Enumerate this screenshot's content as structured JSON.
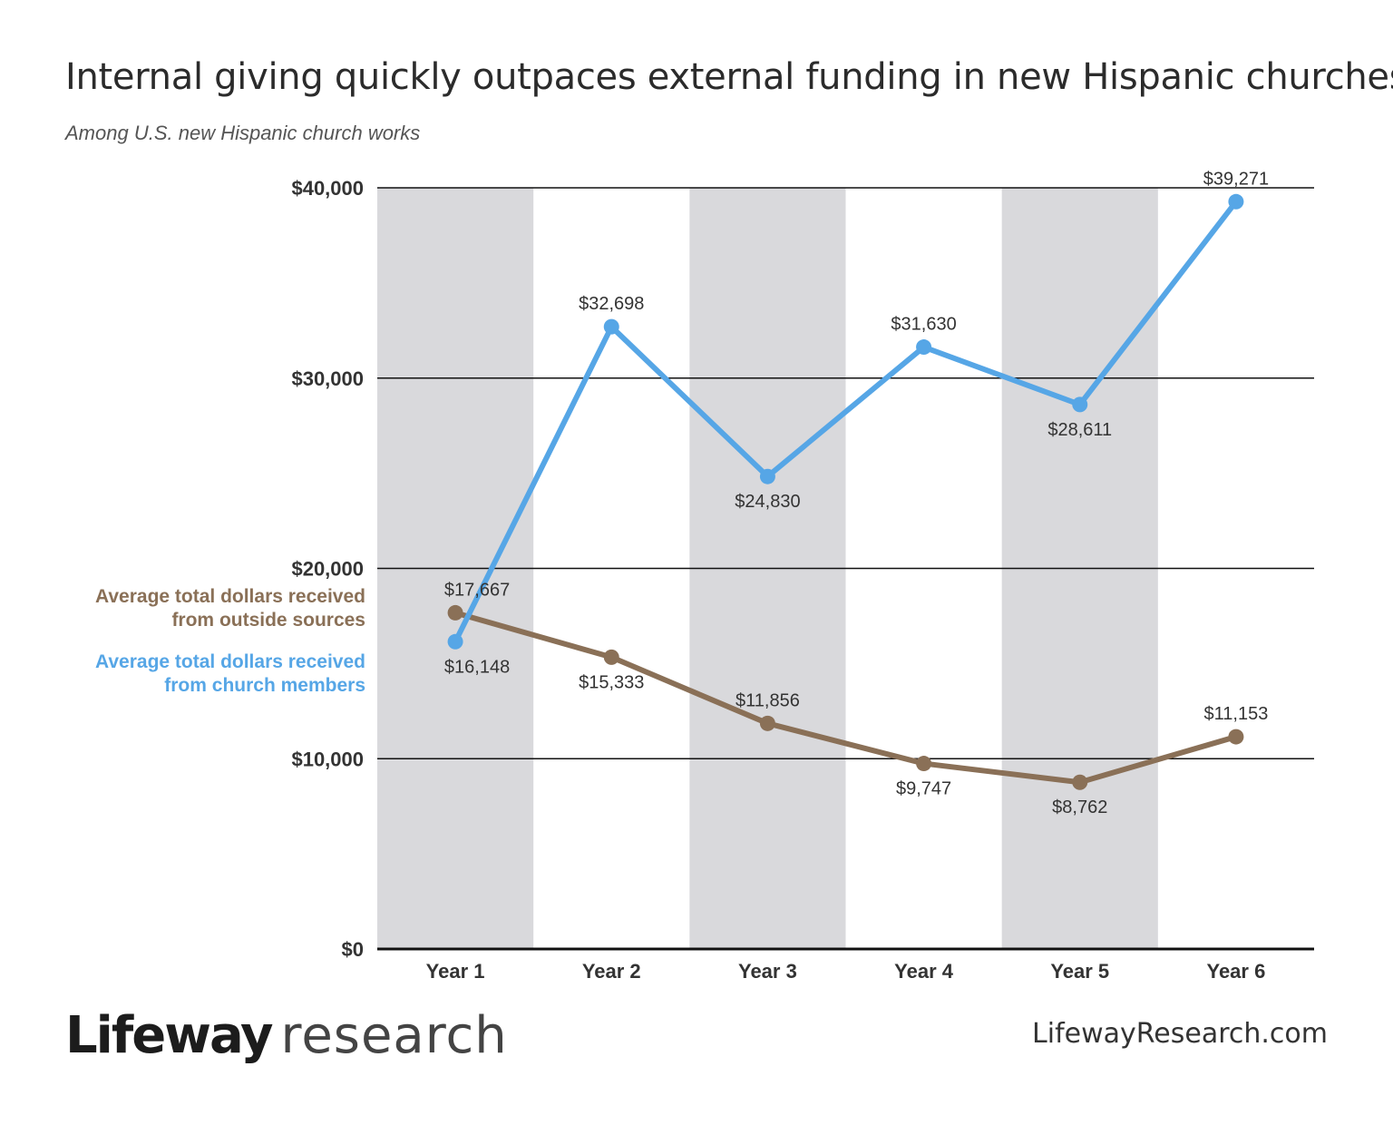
{
  "header": {
    "title": "Internal giving quickly outpaces external funding in new Hispanic churches",
    "subtitle": "Among U.S. new Hispanic church works"
  },
  "legend": {
    "outside": [
      "Average total dollars received",
      "from outside sources"
    ],
    "members": [
      "Average total dollars received",
      "from church members"
    ]
  },
  "footer": {
    "logo_bold": "Lifeway",
    "logo_light": "research",
    "site": "LifewayResearch.com"
  },
  "colors": {
    "members": "#56a6e6",
    "outside": "#8a7057",
    "band": "#d9d9dc"
  },
  "chart_data": {
    "type": "line",
    "title": "Internal giving quickly outpaces external funding in new Hispanic churches",
    "subtitle": "Among U.S. new Hispanic church works",
    "categories": [
      "Year 1",
      "Year 2",
      "Year 3",
      "Year 4",
      "Year 5",
      "Year 6"
    ],
    "ylim": [
      0,
      40000
    ],
    "yticks": [
      0,
      10000,
      20000,
      30000,
      40000
    ],
    "ytick_labels": [
      "$0",
      "$10,000",
      "$20,000",
      "$30,000",
      "$40,000"
    ],
    "grid": true,
    "series": [
      {
        "name": "Average total dollars received from church members",
        "key": "members",
        "values": [
          16148,
          32698,
          24830,
          31630,
          28611,
          39271
        ],
        "labels": [
          "$16,148",
          "$32,698",
          "$24,830",
          "$31,630",
          "$28,611",
          "$39,271"
        ],
        "label_pos": [
          "below",
          "above",
          "below",
          "above",
          "below",
          "above"
        ]
      },
      {
        "name": "Average total dollars received from outside sources",
        "key": "outside",
        "values": [
          17667,
          15333,
          11856,
          9747,
          8762,
          11153
        ],
        "labels": [
          "$17,667",
          "$15,333",
          "$11,856",
          "$9,747",
          "$8,762",
          "$11,153"
        ],
        "label_pos": [
          "above",
          "below",
          "above",
          "below",
          "below",
          "above"
        ]
      }
    ]
  }
}
